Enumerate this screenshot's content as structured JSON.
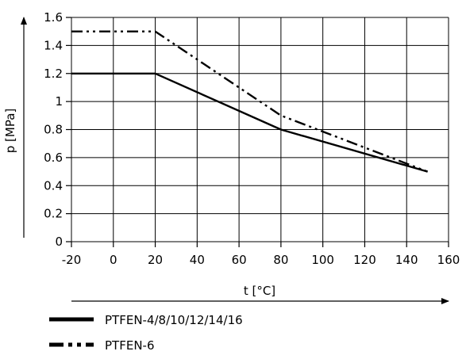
{
  "chart_data": {
    "type": "line",
    "title": "",
    "xlabel": "t [°C]",
    "ylabel": "p [MPa]",
    "xlim": [
      -20,
      160
    ],
    "ylim": [
      0,
      1.6
    ],
    "xticks": [
      "-20",
      "0",
      "20",
      "40",
      "60",
      "80",
      "100",
      "120",
      "140",
      "160"
    ],
    "yticks": [
      "0",
      "0.2",
      "0.4",
      "0.6",
      "0.8",
      "1",
      "1.2",
      "1.4",
      "1.6"
    ],
    "grid": true,
    "legend_position": "bottom-left",
    "series": [
      {
        "name": "PTFEN-4/8/10/12/14/16",
        "style": "solid",
        "x": [
          -20,
          20,
          80,
          150
        ],
        "y": [
          1.2,
          1.2,
          0.8,
          0.5
        ]
      },
      {
        "name": "PTFEN-6",
        "style": "dash-dot-dot",
        "x": [
          -20,
          20,
          80,
          150
        ],
        "y": [
          1.5,
          1.5,
          0.9,
          0.5
        ]
      }
    ]
  }
}
